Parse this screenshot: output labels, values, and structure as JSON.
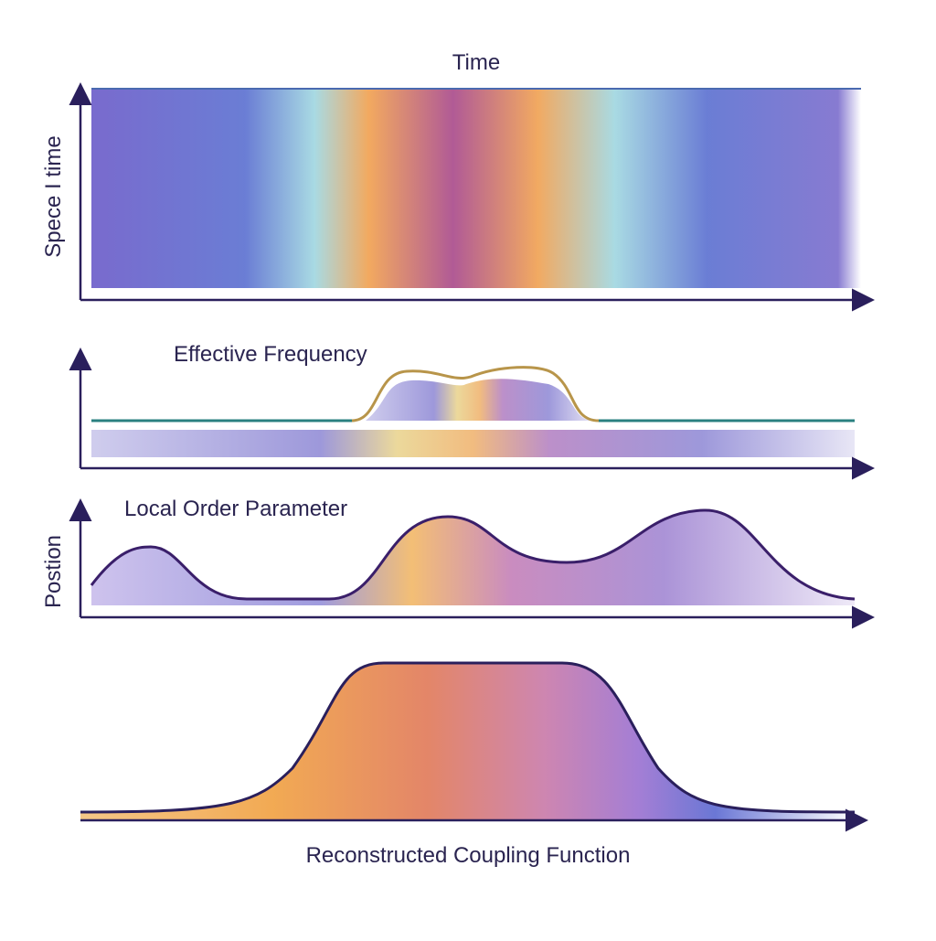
{
  "panels": {
    "space_time": {
      "title": "Time",
      "y_label": "Spece I time"
    },
    "frequency": {
      "title": "Effective Frequency"
    },
    "order": {
      "title": "Local Order Parameter",
      "y_label": "Postion"
    },
    "coupling": {
      "title": "Reconstructed Coupling Function"
    }
  }
}
